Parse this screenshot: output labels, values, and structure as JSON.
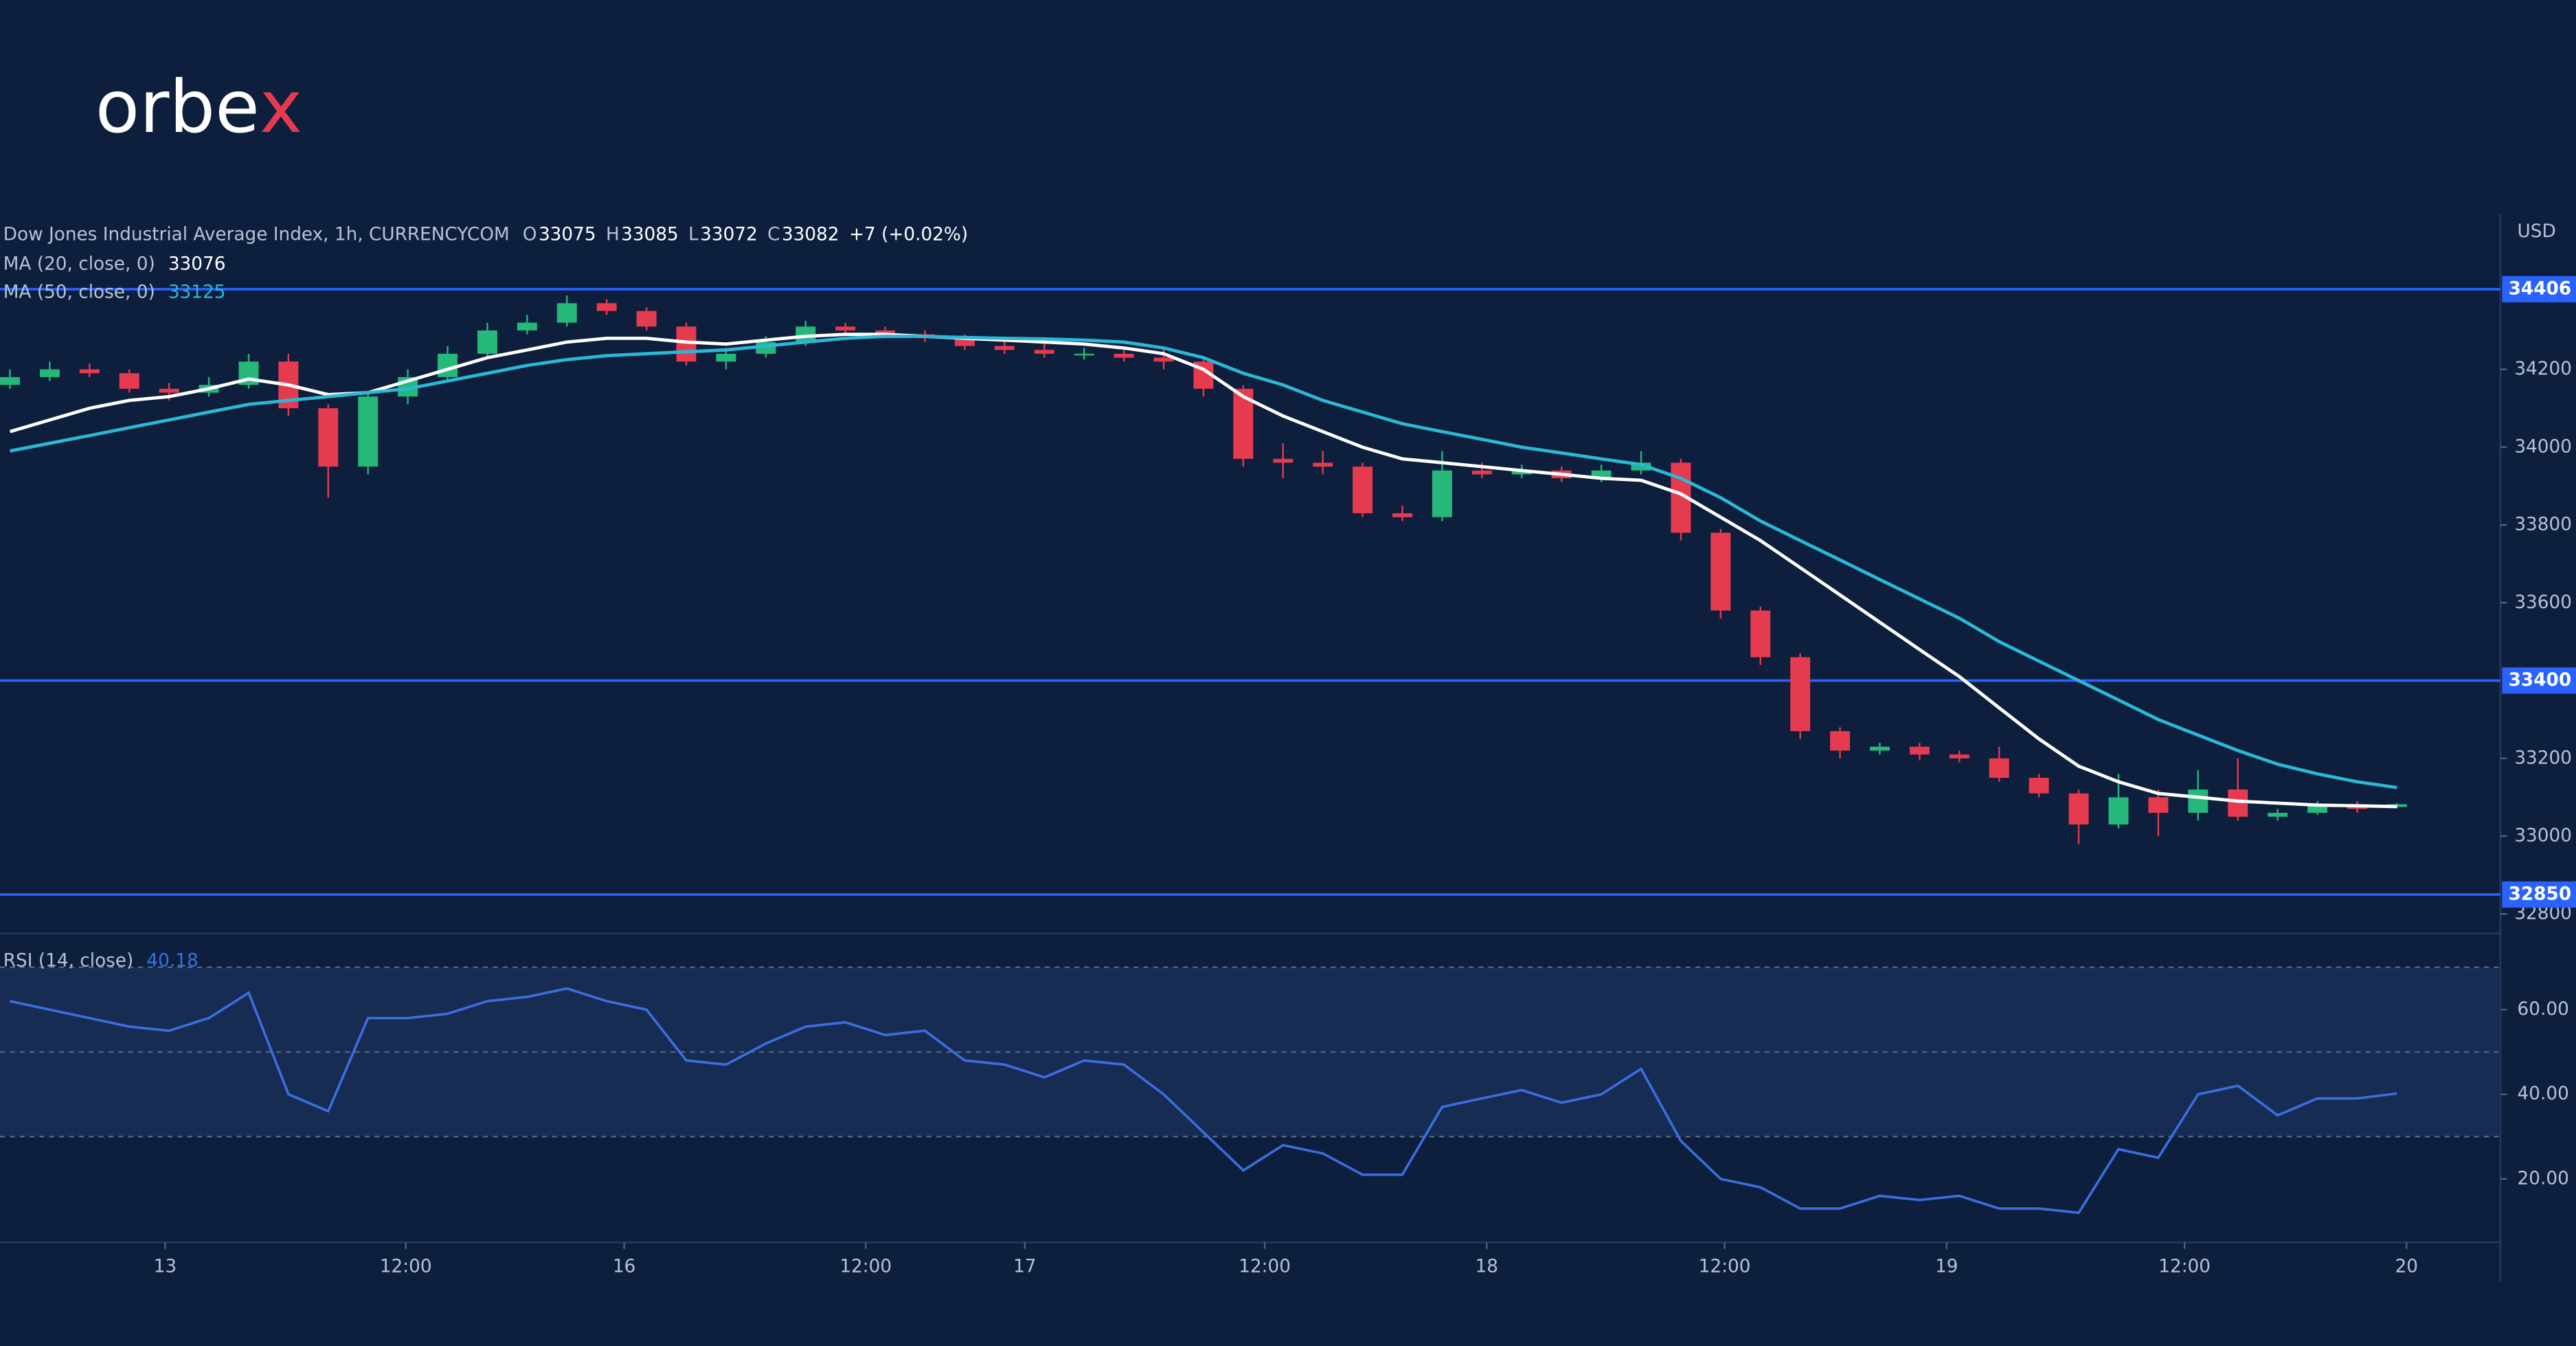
{
  "logo": {
    "main": "orbe",
    "accent": "x"
  },
  "chart_data": [
    {
      "type": "candlestick",
      "title": "Dow Jones Industrial Average Index, 1h, CURRENCYCOM",
      "ohlc_labels": [
        "O",
        "H",
        "L",
        "C"
      ],
      "change": "+7 (+0.02%)",
      "y_axis_label": "USD",
      "xlim": [
        -0.25,
        62.6
      ],
      "ylim": [
        32750,
        34600
      ],
      "yticks": [
        32800,
        33000,
        33200,
        33600,
        33800,
        34000,
        34200
      ],
      "up_color": "#26b77a",
      "down_color": "#e63a4f",
      "open": [
        34160,
        34180,
        34200,
        34190,
        34150,
        34140,
        34160,
        34220,
        34100,
        33950,
        34130,
        34180,
        34240,
        34300,
        34320,
        34370,
        34350,
        34310,
        34220,
        34240,
        34270,
        34310,
        34300,
        34290,
        34280,
        34260,
        34250,
        34240,
        34240,
        34230,
        34220,
        34150,
        33970,
        33960,
        33950,
        33830,
        33820,
        33940,
        33930,
        33940,
        33920,
        33940,
        33960,
        33780,
        33580,
        33460,
        33270,
        33220,
        33230,
        33210,
        33200,
        33150,
        33110,
        33030,
        33100,
        33060,
        33120,
        33050,
        33060,
        33080,
        33075
      ],
      "high": [
        34200,
        34220,
        34215,
        34200,
        34165,
        34180,
        34240,
        34240,
        34110,
        34140,
        34200,
        34260,
        34320,
        34340,
        34390,
        34380,
        34360,
        34320,
        34255,
        34285,
        34325,
        34320,
        34310,
        34300,
        34290,
        34275,
        34265,
        34255,
        34250,
        34260,
        34230,
        34160,
        34010,
        33990,
        33960,
        33850,
        33990,
        33960,
        33955,
        33950,
        33955,
        33990,
        33970,
        33790,
        33590,
        33470,
        33280,
        33240,
        33240,
        33220,
        33230,
        33160,
        33120,
        33160,
        33120,
        33170,
        33200,
        33070,
        33090,
        33090,
        33085
      ],
      "low": [
        34150,
        34170,
        34180,
        34140,
        34120,
        34130,
        34150,
        34080,
        33870,
        33930,
        34110,
        34170,
        34230,
        34290,
        34310,
        34340,
        34300,
        34210,
        34200,
        34230,
        34260,
        34290,
        34280,
        34270,
        34250,
        34240,
        34230,
        34225,
        34220,
        34200,
        34130,
        33950,
        33920,
        33930,
        33820,
        33810,
        33810,
        33920,
        33920,
        33910,
        33910,
        33930,
        33760,
        33560,
        33440,
        33250,
        33200,
        33210,
        33195,
        33190,
        33140,
        33100,
        32980,
        33020,
        33000,
        33040,
        33040,
        33040,
        33055,
        33060,
        33072
      ],
      "close": [
        34180,
        34200,
        34190,
        34150,
        34140,
        34160,
        34220,
        34100,
        33950,
        34130,
        34180,
        34240,
        34300,
        34320,
        34370,
        34350,
        34310,
        34220,
        34240,
        34270,
        34310,
        34300,
        34290,
        34280,
        34260,
        34250,
        34240,
        34240,
        34230,
        34220,
        34150,
        33970,
        33960,
        33950,
        33830,
        33820,
        33940,
        33930,
        33940,
        33920,
        33940,
        33960,
        33780,
        33580,
        33460,
        33270,
        33220,
        33230,
        33210,
        33200,
        33150,
        33110,
        33030,
        33100,
        33060,
        33120,
        33050,
        33060,
        33080,
        33070,
        33082
      ],
      "series": [
        {
          "name": "MA (20, close, 0)",
          "color": "#ffffff",
          "values": [
            34040,
            34070,
            34100,
            34120,
            34130,
            34150,
            34175,
            34160,
            34135,
            34140,
            34170,
            34200,
            34230,
            34250,
            34270,
            34280,
            34280,
            34270,
            34265,
            34275,
            34285,
            34290,
            34290,
            34285,
            34280,
            34275,
            34270,
            34265,
            34255,
            34240,
            34200,
            34130,
            34080,
            34040,
            34000,
            33970,
            33960,
            33950,
            33940,
            33930,
            33920,
            33915,
            33880,
            33820,
            33760,
            33690,
            33620,
            33550,
            33480,
            33410,
            33330,
            33250,
            33180,
            33140,
            33110,
            33100,
            33090,
            33085,
            33080,
            33078,
            33076
          ]
        },
        {
          "name": "MA (50, close, 0)",
          "color": "#2bb8d6",
          "values": [
            33990,
            34010,
            34030,
            34050,
            34070,
            34090,
            34110,
            34120,
            34130,
            34140,
            34150,
            34170,
            34190,
            34210,
            34225,
            34235,
            34240,
            34245,
            34250,
            34260,
            34270,
            34280,
            34285,
            34285,
            34282,
            34280,
            34278,
            34275,
            34270,
            34255,
            34230,
            34190,
            34160,
            34120,
            34090,
            34060,
            34040,
            34020,
            34000,
            33985,
            33970,
            33955,
            33920,
            33870,
            33810,
            33760,
            33710,
            33660,
            33610,
            33560,
            33500,
            33450,
            33400,
            33350,
            33300,
            33260,
            33220,
            33185,
            33160,
            33140,
            33125
          ]
        }
      ],
      "levels": [
        {
          "value": 34406,
          "color": "#2962ff"
        },
        {
          "value": 33400,
          "color": "#2962ff"
        },
        {
          "value": 32850,
          "color": "#2962ff"
        }
      ]
    },
    {
      "type": "line",
      "xlim": [
        -0.25,
        62.6
      ],
      "ylim": [
        5,
        78
      ],
      "yticks": [
        {
          "value": 20,
          "label": "20.00"
        },
        {
          "value": 40,
          "label": "40.00"
        },
        {
          "value": 60,
          "label": "60.00"
        }
      ],
      "levels": [
        70,
        50,
        30
      ],
      "xticks": [
        {
          "value": 3.9,
          "label": "13"
        },
        {
          "value": 9.95,
          "label": "12:00"
        },
        {
          "value": 15.44,
          "label": "16"
        },
        {
          "value": 21.51,
          "label": "12:00"
        },
        {
          "value": 25.51,
          "label": "17"
        },
        {
          "value": 31.54,
          "label": "12:00"
        },
        {
          "value": 37.12,
          "label": "18"
        },
        {
          "value": 43.1,
          "label": "12:00"
        },
        {
          "value": 48.68,
          "label": "19"
        },
        {
          "value": 54.66,
          "label": "12:00"
        },
        {
          "value": 60.24,
          "label": "20"
        }
      ],
      "series": [
        {
          "name": "RSI (14, close)",
          "color": "#3a6fe0",
          "values": [
            62,
            60,
            58,
            56,
            55,
            58,
            64,
            40,
            36,
            58,
            58,
            59,
            62,
            63,
            65,
            62,
            60,
            48,
            47,
            52,
            56,
            57,
            54,
            55,
            48,
            47,
            44,
            48,
            47,
            40,
            31,
            22,
            28,
            26,
            21,
            21,
            37,
            39,
            41,
            38,
            40,
            46,
            29,
            20,
            18,
            13,
            13,
            16,
            15,
            16,
            13,
            13,
            12,
            27,
            25,
            40,
            42,
            35,
            39,
            39,
            40.18
          ]
        }
      ]
    }
  ]
}
